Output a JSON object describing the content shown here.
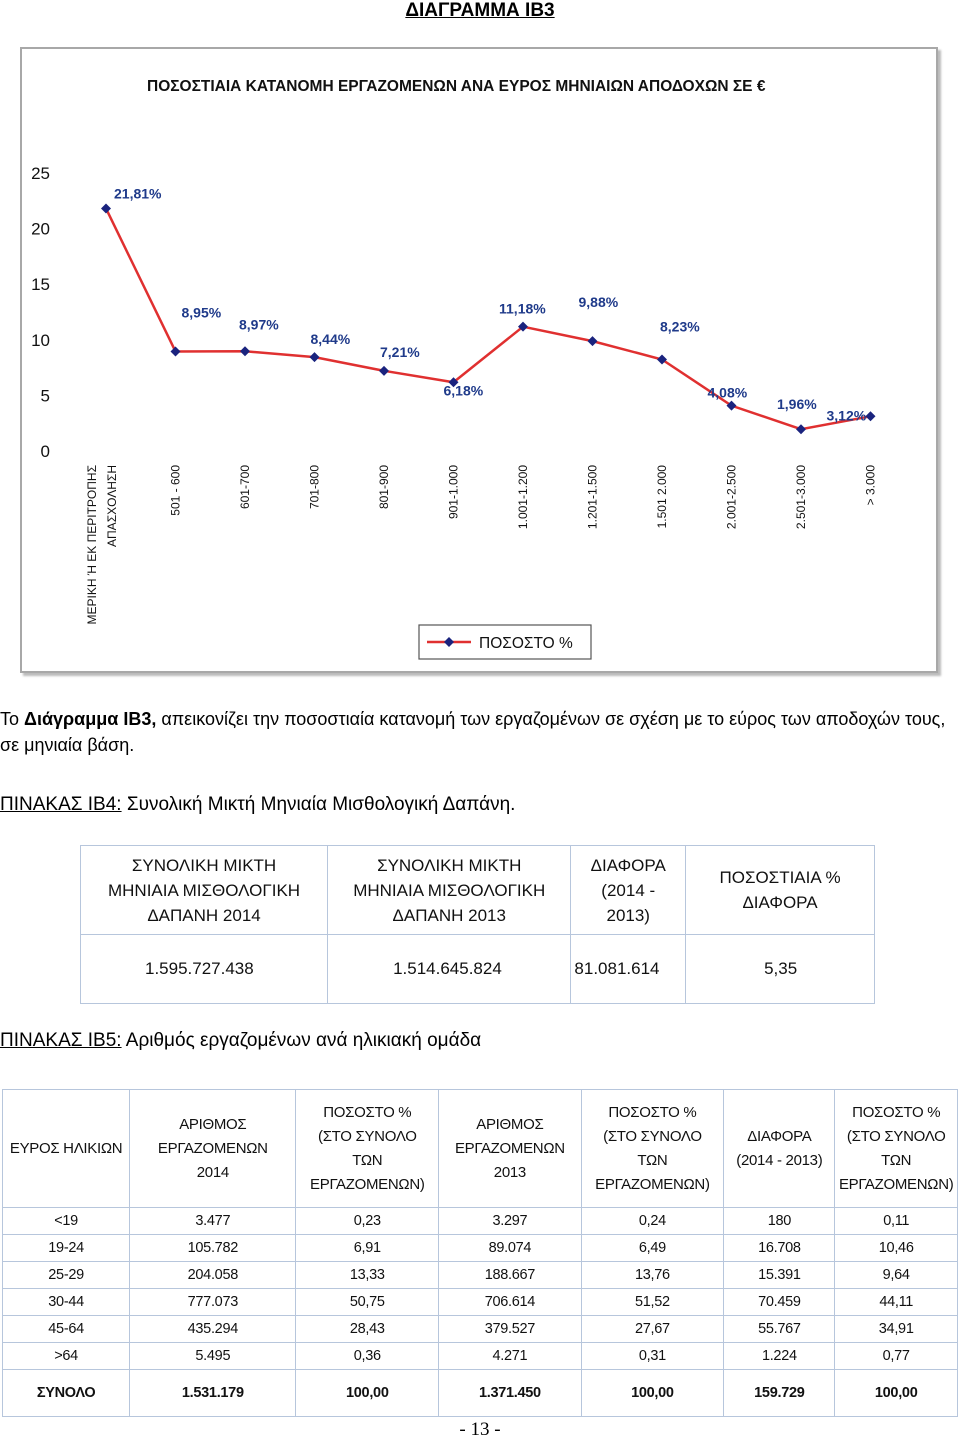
{
  "heading": "ΔΙΑΓΡΑΜΜΑ ΙΒ3",
  "chart_data": {
    "type": "line",
    "title": "ΠΟΣΟΣΤΙΑΙΑ ΚΑΤΑΝΟΜΗ ΕΡΓΑΖΟΜΕΝΩΝ ΑΝΑ ΕΥΡΟΣ ΜΗΝΙΑΙΩΝ ΑΠΟΔΟΧΩΝ ΣΕ €",
    "categories": [
      [
        "ΜΕΡΙΚΗ Ή ΕΚ ΠΕΡΙΤΡΟΠΗΣ",
        "ΑΠΑΣΧΟΛΗΣΗ"
      ],
      [
        "501 - 600"
      ],
      [
        "601-700"
      ],
      [
        "701-800"
      ],
      [
        "801-900"
      ],
      [
        "901-1.000"
      ],
      [
        "1.001-1.200"
      ],
      [
        "1.201-1.500"
      ],
      [
        "1.501 2.000"
      ],
      [
        "2.001-2.500"
      ],
      [
        "2.501-3.000"
      ],
      [
        "> 3.000"
      ]
    ],
    "series": [
      {
        "name": "ΠΟΣΟΣΤΟ %",
        "values": [
          21.81,
          8.95,
          8.97,
          8.44,
          7.21,
          6.18,
          11.18,
          9.88,
          8.23,
          4.08,
          1.96,
          3.12
        ],
        "labels": [
          "21,81%",
          "8,95%",
          "8,97%",
          "8,44%",
          "7,21%",
          "6,18%",
          "11,18%",
          "9,88%",
          "8,23%",
          "4,08%",
          "1,96%",
          "3,12%"
        ]
      }
    ],
    "yticks": [
      "0",
      "5",
      "10",
      "15",
      "20",
      "25"
    ],
    "ylim": [
      0,
      25
    ],
    "legend": "bottom-center",
    "colors": {
      "line": "#e03030",
      "marker": "#1a237e"
    }
  },
  "paragraph": {
    "prefix": "Το ",
    "emph": "Διάγραμμα ΙΒ3,",
    "rest": " απεικονίζει την ποσοστιαία κατανομή των εργαζομένων σε σχέση με το εύρος των αποδοχών τους, σε μηνιαία βάση."
  },
  "table4": {
    "title_label": "ΠΙΝΑΚΑΣ ΙΒ4:",
    "title_text": " Συνολική Μικτή Μηνιαία Μισθολογική  Δαπάνη.",
    "headers": [
      [
        "ΣΥΝΟΛΙΚΗ ΜΙΚΤΗ",
        "ΜΗΝΙΑΙΑ ΜΙΣΘΟΛΟΓΙΚΗ",
        "ΔΑΠΑΝΗ 2014"
      ],
      [
        "ΣΥΝΟΛΙΚΗ ΜΙΚΤΗ",
        "ΜΗΝΙΑΙΑ ΜΙΣΘΟΛΟΓΙΚΗ",
        "ΔΑΠΑΝΗ 2013"
      ],
      [
        "ΔΙΑΦΟΡΑ",
        "(2014 -",
        "2013)"
      ],
      [
        "ΠΟΣΟΣΤΙΑΙΑ %",
        "ΔΙΑΦΟΡΑ"
      ]
    ],
    "values": [
      "1.595.727.438",
      "1.514.645.824",
      "81.081.614",
      "5,35"
    ]
  },
  "table5": {
    "title_label": "ΠΙΝΑΚΑΣ ΙΒ5:",
    "title_text": "  Αριθμός εργαζομένων ανά ηλικιακή ομάδα",
    "headers": [
      [
        "ΕΥΡΟΣ ΗΛΙΚΙΩΝ"
      ],
      [
        "ΑΡΙΘΜΟΣ",
        "ΕΡΓΑΖΟΜΕΝΩΝ",
        "2014"
      ],
      [
        "ΠΟΣΟΣΤΟ %",
        "(ΣΤΟ ΣΥΝΟΛΟ",
        "ΤΩΝ",
        "ΕΡΓΑΖΟΜΕΝΩΝ)"
      ],
      [
        "ΑΡΙΘΜΟΣ",
        "ΕΡΓΑΖΟΜΕΝΩΝ",
        "2013"
      ],
      [
        "ΠΟΣΟΣΤΟ %",
        "(ΣΤΟ ΣΥΝΟΛΟ",
        "ΤΩΝ",
        "ΕΡΓΑΖΟΜΕΝΩΝ)"
      ],
      [
        "ΔΙΑΦΟΡΑ",
        "(2014 - 2013)"
      ],
      [
        "ΠΟΣΟΣΤΟ %",
        "(ΣΤΟ ΣΥΝΟΛΟ",
        "ΤΩΝ",
        "ΕΡΓΑΖΟΜΕΝΩΝ)"
      ]
    ],
    "rows": [
      [
        "<19",
        "3.477",
        "0,23",
        "3.297",
        "0,24",
        "180",
        "0,11"
      ],
      [
        "19-24",
        "105.782",
        "6,91",
        "89.074",
        "6,49",
        "16.708",
        "10,46"
      ],
      [
        "25-29",
        "204.058",
        "13,33",
        "188.667",
        "13,76",
        "15.391",
        "9,64"
      ],
      [
        "30-44",
        "777.073",
        "50,75",
        "706.614",
        "51,52",
        "70.459",
        "44,11"
      ],
      [
        "45-64",
        "435.294",
        "28,43",
        "379.527",
        "27,67",
        "55.767",
        "34,91"
      ],
      [
        ">64",
        "5.495",
        "0,36",
        "4.271",
        "0,31",
        "1.224",
        "0,77"
      ]
    ],
    "total": [
      "ΣΥΝΟΛΟ",
      "1.531.179",
      "100,00",
      "1.371.450",
      "100,00",
      "159.729",
      "100,00"
    ]
  },
  "page_number": "- 13 -"
}
